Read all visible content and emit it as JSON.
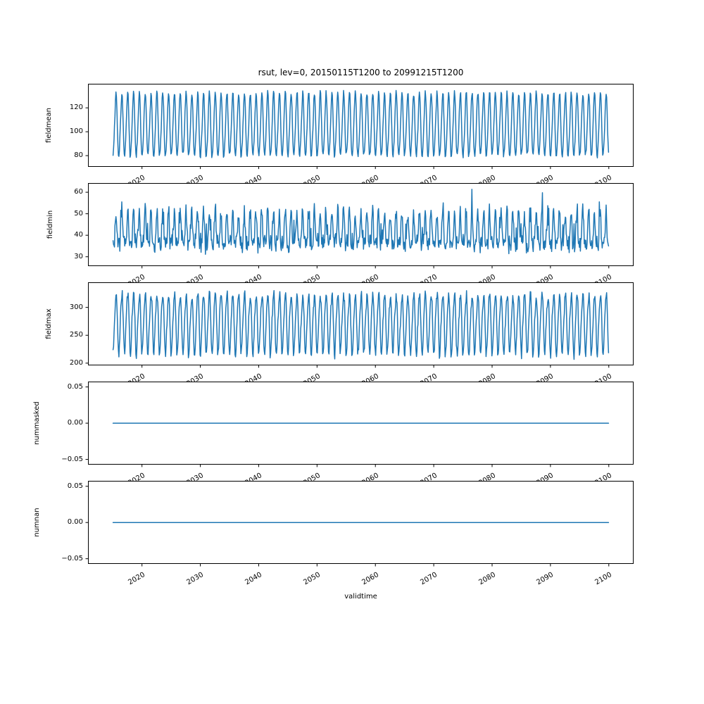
{
  "figure": {
    "background_color": "#ffffff",
    "line_color": "#1f77b4",
    "spine_color": "#000000",
    "text_color": "#000000"
  },
  "chart_data": {
    "type": "line",
    "title": "rsut, lev=0, 20150115T1200 to 20991215T1200",
    "xlabel": "validtime",
    "legend": "none",
    "grid": false,
    "x_start_year": 2015.0417,
    "x_end_year": 2099.9583,
    "samples_per_year": 12,
    "n_points": 1020,
    "xlim": [
      2010.75,
      2104.25
    ],
    "xticks": [
      2020,
      2030,
      2040,
      2050,
      2060,
      2070,
      2080,
      2090,
      2100
    ],
    "xtick_labels": [
      "2020",
      "2030",
      "2040",
      "2050",
      "2060",
      "2070",
      "2080",
      "2090",
      "2100"
    ],
    "subplots": [
      {
        "ylabel": "fieldmean",
        "ylim": [
          70.85,
          140.15
        ],
        "yticks": [
          {
            "v": 120,
            "label": "120"
          },
          {
            "v": 100,
            "label": "100"
          },
          {
            "v": 80,
            "label": "80"
          }
        ],
        "series_kind": "seasonal",
        "monthly_profile": [
          80.5,
          85.5,
          93.5,
          103.5,
          115.0,
          126.0,
          132.5,
          130.5,
          119.5,
          103.5,
          89.0,
          81.0
        ],
        "noise_amplitude": 3.0,
        "spike_probability": 0,
        "spike_amplitude": 0,
        "value_range": [
          74.0,
          136.5
        ],
        "seed": 101
      },
      {
        "ylabel": "fieldmin",
        "ylim": [
          25.75,
          64.25
        ],
        "yticks": [
          {
            "v": 60,
            "label": "60"
          },
          {
            "v": 50,
            "label": "50"
          },
          {
            "v": 40,
            "label": "40"
          },
          {
            "v": 30,
            "label": "30"
          }
        ],
        "series_kind": "seasonal",
        "monthly_profile": [
          37.0,
          36.4,
          36.0,
          38.0,
          43.0,
          48.6,
          51.0,
          48.6,
          43.0,
          38.0,
          36.0,
          36.4
        ],
        "noise_amplitude": 5.0,
        "spike_probability": 0.05,
        "spike_amplitude": 9,
        "value_range": [
          28.5,
          62.5
        ],
        "seed": 202
      },
      {
        "ylabel": "fieldmax",
        "ylim": [
          196.25,
          344.75
        ],
        "yticks": [
          {
            "v": 300,
            "label": "300"
          },
          {
            "v": 250,
            "label": "250"
          },
          {
            "v": 200,
            "label": "200"
          }
        ],
        "series_kind": "seasonal",
        "monthly_profile": [
          216.0,
          231.0,
          254.0,
          276.0,
          294.0,
          309.0,
          320.0,
          321.0,
          306.0,
          276.0,
          242.0,
          219.0
        ],
        "noise_amplitude": 11.0,
        "spike_probability": 0,
        "spike_amplitude": 0,
        "value_range": [
          203.0,
          338.0
        ],
        "seed": 303
      },
      {
        "ylabel": "nummasked",
        "ylim": [
          -0.057143,
          0.057143
        ],
        "yticks": [
          {
            "v": 0.05,
            "label": "0.05"
          },
          {
            "v": 0.0,
            "label": "0.00"
          },
          {
            "v": -0.05,
            "label": "−0.05"
          }
        ],
        "series_kind": "constant",
        "constant_value": 0.0
      },
      {
        "ylabel": "numnan",
        "ylim": [
          -0.057143,
          0.057143
        ],
        "yticks": [
          {
            "v": 0.05,
            "label": "0.05"
          },
          {
            "v": 0.0,
            "label": "0.00"
          },
          {
            "v": -0.05,
            "label": "−0.05"
          }
        ],
        "series_kind": "constant",
        "constant_value": 0.0
      }
    ]
  }
}
